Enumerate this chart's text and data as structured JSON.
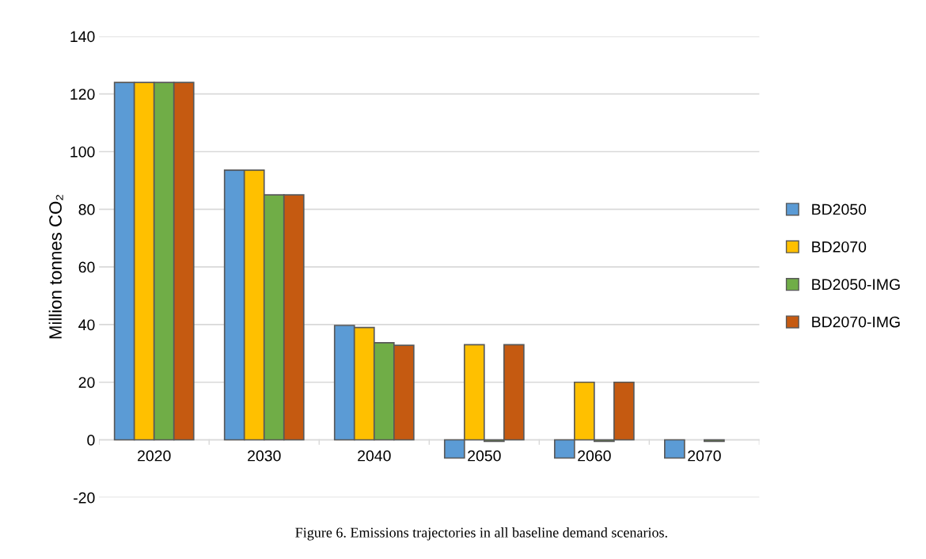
{
  "chart_data": {
    "type": "bar",
    "ylabel": "Million tonnes CO₂",
    "categories": [
      "2020",
      "2030",
      "2040",
      "2050",
      "2060",
      "2070"
    ],
    "series": [
      {
        "name": "BD2050",
        "color": "#5b9bd5",
        "values": [
          124,
          93.6,
          39.7,
          -6.3,
          -6.3,
          -6.3
        ]
      },
      {
        "name": "BD2070",
        "color": "#ffc000",
        "values": [
          124,
          93.6,
          39.0,
          33.0,
          20.0,
          null
        ]
      },
      {
        "name": "BD2050-IMG",
        "color": "#70ad47",
        "values": [
          124,
          85.0,
          33.7,
          -0.5,
          -0.5,
          -0.5
        ]
      },
      {
        "name": "BD2070-IMG",
        "color": "#c55a11",
        "values": [
          124,
          85.0,
          32.8,
          33.0,
          20.0,
          null
        ]
      }
    ],
    "ylim": [
      -20,
      140
    ],
    "yticks": [
      -20,
      0,
      20,
      40,
      60,
      80,
      100,
      120,
      140
    ],
    "grid": "y",
    "legend": "right",
    "annotations": [
      "Figure 6. Emissions trajectories in all baseline demand scenarios."
    ]
  }
}
